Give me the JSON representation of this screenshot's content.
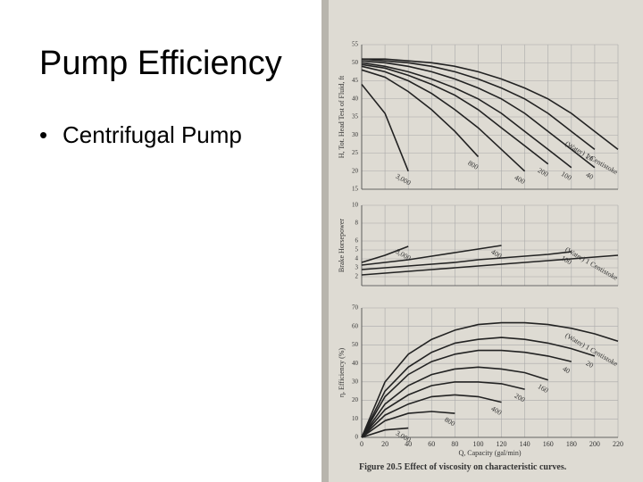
{
  "slide": {
    "title": "Pump Efficiency",
    "bullets": [
      "Centrifugal Pump"
    ]
  },
  "figure": {
    "caption": "Figure 20.5 Effect of viscosity on characteristic curves."
  },
  "chart_data": [
    {
      "type": "line",
      "ylabel": "H, Tot. Head Test of Fluid, ft",
      "color": "#222",
      "x": [
        0,
        20,
        40,
        60,
        80,
        100,
        120,
        140,
        160,
        180,
        200,
        220
      ],
      "xlim": [
        0,
        220
      ],
      "xticks": [
        0,
        20,
        40,
        60,
        80,
        100,
        120,
        140,
        160,
        180,
        200,
        220
      ],
      "xtick_labels": false,
      "ylim": [
        15,
        55
      ],
      "yticks": [
        15,
        20,
        25,
        30,
        35,
        40,
        45,
        50,
        55
      ],
      "grid": true,
      "series": [
        {
          "name": "(Water) 1 Centistoke",
          "values": [
            51,
            51,
            50.5,
            50,
            49,
            47.5,
            45.5,
            43,
            40,
            36,
            31,
            26
          ]
        },
        {
          "name": "20",
          "values": [
            51,
            50.5,
            50,
            49,
            47.5,
            45.5,
            43,
            40,
            36,
            31,
            26,
            null
          ]
        },
        {
          "name": "40",
          "values": [
            50.5,
            50,
            49,
            47.5,
            45.5,
            43,
            40,
            36,
            31,
            26,
            21,
            null
          ]
        },
        {
          "name": "100",
          "values": [
            50,
            49,
            47.5,
            45.5,
            43,
            40,
            36,
            31,
            26,
            21,
            null,
            null
          ]
        },
        {
          "name": "200",
          "values": [
            49.5,
            48.5,
            46.5,
            44,
            41,
            37,
            32,
            27,
            22,
            null,
            null,
            null
          ]
        },
        {
          "name": "400",
          "values": [
            49,
            47.5,
            45,
            41.5,
            37,
            32,
            26,
            20,
            null,
            null,
            null,
            null
          ]
        },
        {
          "name": "800",
          "values": [
            48,
            46,
            42,
            37,
            31,
            24,
            null,
            null,
            null,
            null,
            null,
            null
          ]
        },
        {
          "name": "3,000",
          "values": [
            44,
            36,
            20,
            null,
            null,
            null,
            null,
            null,
            null,
            null,
            null,
            null
          ]
        }
      ]
    },
    {
      "type": "line",
      "ylabel": "Brake Horsepower",
      "color": "#222",
      "x": [
        0,
        20,
        40,
        60,
        80,
        100,
        120,
        140,
        160,
        180,
        200,
        220
      ],
      "xlim": [
        0,
        220
      ],
      "xticks": [
        0,
        20,
        40,
        60,
        80,
        100,
        120,
        140,
        160,
        180,
        200,
        220
      ],
      "xtick_labels": false,
      "ylim": [
        1,
        10
      ],
      "yticks": [
        2,
        3,
        4,
        5,
        6,
        8,
        10
      ],
      "grid": true,
      "series": [
        {
          "name": "(Water) 1 Centistoke",
          "values": [
            2.2,
            2.4,
            2.6,
            2.8,
            3,
            3.2,
            3.4,
            3.6,
            3.8,
            4,
            4.2,
            4.4
          ]
        },
        {
          "name": "100",
          "values": [
            2.8,
            3,
            3.2,
            3.4,
            3.6,
            3.9,
            4.1,
            4.3,
            4.5,
            4.8,
            null,
            null
          ]
        },
        {
          "name": "400",
          "values": [
            3.3,
            3.6,
            3.9,
            4.3,
            4.7,
            5.1,
            5.5,
            null,
            null,
            null,
            null,
            null
          ]
        },
        {
          "name": "3,000",
          "values": [
            3.6,
            4.4,
            5.4,
            null,
            null,
            null,
            null,
            null,
            null,
            null,
            null,
            null
          ]
        }
      ]
    },
    {
      "type": "line",
      "ylabel": "η, Efficiency (%)",
      "xlabel": "Q, Capacity (gal/min)",
      "color": "#222",
      "x": [
        0,
        20,
        40,
        60,
        80,
        100,
        120,
        140,
        160,
        180,
        200,
        220
      ],
      "xlim": [
        0,
        220
      ],
      "xticks": [
        0,
        20,
        40,
        60,
        80,
        100,
        120,
        140,
        160,
        180,
        200,
        220
      ],
      "xtick_labels": true,
      "ylim": [
        0,
        70
      ],
      "yticks": [
        0,
        10,
        20,
        30,
        40,
        50,
        60,
        70
      ],
      "grid": true,
      "series": [
        {
          "name": "(Water) 1 Centistoke",
          "values": [
            0,
            30,
            45,
            53,
            58,
            61,
            62,
            62,
            61,
            59,
            56,
            52
          ]
        },
        {
          "name": "20",
          "values": [
            0,
            25,
            38,
            46,
            51,
            53,
            54,
            53,
            51,
            48,
            44,
            null
          ]
        },
        {
          "name": "40",
          "values": [
            0,
            22,
            34,
            41,
            45,
            47,
            47,
            46,
            44,
            41,
            null,
            null
          ]
        },
        {
          "name": "160",
          "values": [
            0,
            18,
            28,
            34,
            37,
            38,
            37,
            35,
            31,
            null,
            null,
            null
          ]
        },
        {
          "name": "200",
          "values": [
            0,
            15,
            23,
            28,
            30,
            30,
            29,
            26,
            null,
            null,
            null,
            null
          ]
        },
        {
          "name": "400",
          "values": [
            0,
            12,
            18,
            22,
            23,
            22,
            19,
            null,
            null,
            null,
            null,
            null
          ]
        },
        {
          "name": "800",
          "values": [
            0,
            9,
            13,
            14,
            13,
            null,
            null,
            null,
            null,
            null,
            null,
            null
          ]
        },
        {
          "name": "3,000",
          "values": [
            0,
            4,
            5,
            null,
            null,
            null,
            null,
            null,
            null,
            null,
            null,
            null
          ]
        }
      ]
    }
  ]
}
